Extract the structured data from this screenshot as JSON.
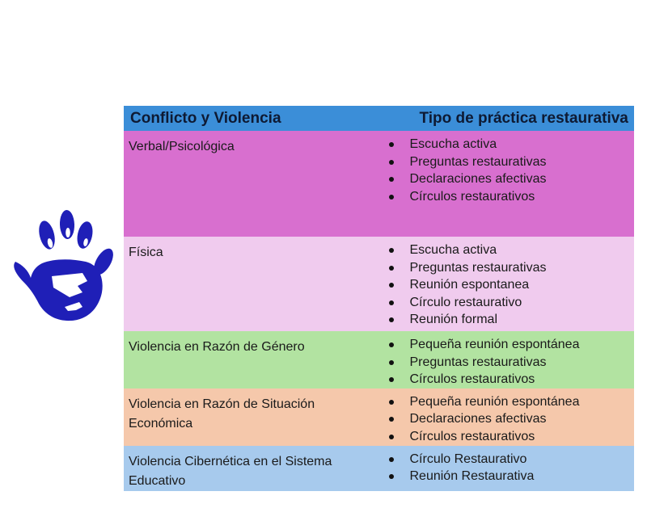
{
  "colors": {
    "header": "#3b8ed8",
    "rows": [
      "#d86fcf",
      "#f0cbee",
      "#b2e3a1",
      "#f5c8ab",
      "#a7caed"
    ],
    "hand": "#1f1fb7"
  },
  "icon": "blue-handprint-icon",
  "table": {
    "headers": [
      "Conflicto y Violencia",
      "Tipo de práctica restaurativa"
    ],
    "rows": [
      {
        "label": "Verbal/Psicológica",
        "items": [
          "Escucha activa",
          "Preguntas restaurativas",
          "Declaraciones afectivas",
          "Círculos restaurativos"
        ]
      },
      {
        "label": "Física",
        "items": [
          "Escucha activa",
          "Preguntas restaurativas",
          "Reunión espontanea",
          "Círculo restaurativo",
          "Reunión formal"
        ]
      },
      {
        "label": "Violencia en Razón de Género",
        "items": [
          "Pequeña reunión espontánea",
          "Preguntas restaurativas",
          "Círculos restaurativos"
        ]
      },
      {
        "label": "Violencia en Razón de Situación Económica",
        "items": [
          "Pequeña reunión espontánea",
          "Declaraciones afectivas",
          "Círculos restaurativos"
        ]
      },
      {
        "label": "Violencia Cibernética en el Sistema Educativo",
        "items": [
          "Círculo Restaurativo",
          "Reunión Restaurativa"
        ]
      }
    ]
  }
}
